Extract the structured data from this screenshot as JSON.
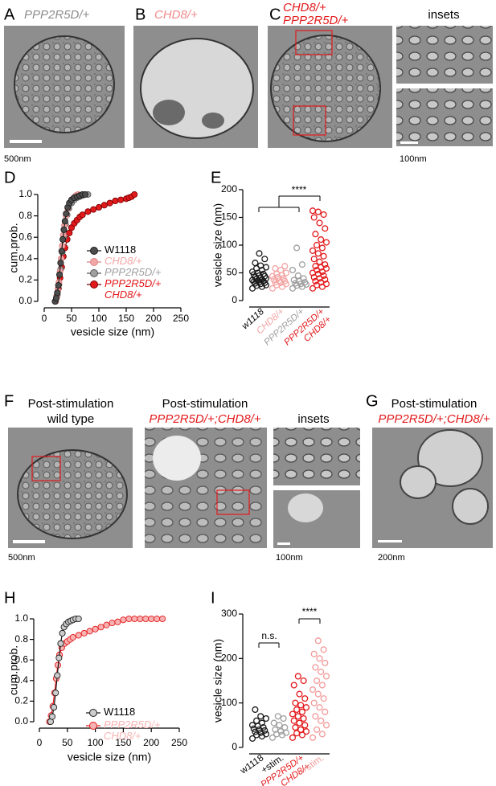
{
  "panels": {
    "A": {
      "label": "A",
      "title": "PPP2R5D/+",
      "scale": "500nm"
    },
    "B": {
      "label": "B",
      "title": "CHD8/+"
    },
    "C": {
      "label": "C",
      "title": [
        "CHD8/+",
        "PPP2R5D/+"
      ],
      "insets_title": "insets",
      "insets_scale": "100nm"
    },
    "F": {
      "label": "F",
      "wt_title": [
        "Post-stimulation",
        "wild type"
      ],
      "wt_scale": "500nm",
      "mut_title": [
        "Post-stimulation",
        "PPP2R5D/+;CHD8/+"
      ],
      "insets_title": "insets",
      "insets_scale": "100nm"
    },
    "G": {
      "label": "G",
      "title": [
        "Post-stimulation",
        "PPP2R5D/+;CHD8/+"
      ],
      "scale": "200nm"
    }
  },
  "chart_data": [
    {
      "label": "D",
      "type": "line",
      "ylabel": "cum.prob.",
      "xlabel": "vesicle size (nm)",
      "xlim": [
        0,
        250
      ],
      "xticks": [
        0,
        50,
        100,
        150,
        200,
        250
      ],
      "ylim": [
        0,
        1
      ],
      "yticks": [
        {
          "value": 0,
          "label": "0.0"
        },
        0.2,
        0.4,
        0.6,
        0.8,
        {
          "value": 1,
          "label": "1.0"
        }
      ],
      "series": [
        {
          "name": "W1118",
          "color": "#4d4d4d",
          "edgecolor": "#1a1a1a",
          "x": [
            20,
            22,
            24,
            26,
            28,
            30,
            32,
            34,
            36,
            38,
            40,
            43,
            46,
            50,
            55,
            60,
            65,
            70,
            75
          ],
          "values": [
            0,
            0.03,
            0.08,
            0.15,
            0.25,
            0.36,
            0.47,
            0.58,
            0.67,
            0.75,
            0.82,
            0.88,
            0.92,
            0.95,
            0.97,
            0.98,
            0.99,
            1,
            1
          ]
        },
        {
          "name": "CHD8/+",
          "color": "#f4a6a6",
          "edgecolor": "#d98080",
          "x": [
            21,
            23,
            25,
            27,
            29,
            31,
            33,
            35,
            37,
            40,
            43,
            46,
            50,
            54,
            58,
            62
          ],
          "values": [
            0,
            0.04,
            0.1,
            0.18,
            0.28,
            0.4,
            0.52,
            0.62,
            0.71,
            0.8,
            0.87,
            0.92,
            0.95,
            0.97,
            0.99,
            1
          ]
        },
        {
          "name": "PPP2R5D/+",
          "color": "#a0a0a0",
          "edgecolor": "#555555",
          "x": [
            21,
            24,
            27,
            30,
            33,
            36,
            39,
            42,
            45,
            50,
            55,
            60,
            65,
            70,
            80
          ],
          "values": [
            0,
            0.06,
            0.16,
            0.3,
            0.46,
            0.6,
            0.72,
            0.81,
            0.87,
            0.92,
            0.95,
            0.97,
            0.98,
            0.99,
            1
          ]
        },
        {
          "name": "PPP2R5D/+ CHD8/+",
          "color": "#e31a1c",
          "edgecolor": "#7a0000",
          "x": [
            20,
            23,
            26,
            29,
            32,
            35,
            38,
            42,
            46,
            50,
            55,
            60,
            65,
            70,
            80,
            90,
            100,
            110,
            120,
            130,
            140,
            150,
            155,
            160,
            165
          ],
          "values": [
            0,
            0.05,
            0.12,
            0.22,
            0.32,
            0.42,
            0.5,
            0.58,
            0.64,
            0.69,
            0.73,
            0.76,
            0.79,
            0.81,
            0.84,
            0.86,
            0.88,
            0.9,
            0.92,
            0.94,
            0.95,
            0.96,
            0.97,
            0.98,
            1
          ]
        }
      ]
    },
    {
      "label": "E",
      "type": "strip",
      "ylabel": "vesicle size (nm)",
      "ylim": [
        0,
        200
      ],
      "yticks": [
        0,
        50,
        100,
        150,
        200
      ],
      "categories": [
        "w1118",
        "CHD8/+",
        "PPP2R5D/+",
        "PPP2R5D/+ CHD8/+"
      ],
      "category_colors": [
        "#000000",
        "#f4a4a4",
        "#9e9e9e",
        "#e31a1c"
      ],
      "annotations": [
        "****"
      ],
      "series": [
        {
          "color": "#1a1a1a",
          "values": [
            22,
            25,
            27,
            28,
            30,
            31,
            32,
            33,
            34,
            35,
            36,
            37,
            38,
            39,
            40,
            41,
            42,
            44,
            45,
            47,
            48,
            50,
            52,
            55,
            58,
            60,
            63,
            68,
            75,
            85
          ]
        },
        {
          "color": "#f4a4a4",
          "values": [
            22,
            25,
            28,
            30,
            32,
            33,
            35,
            36,
            38,
            40,
            42,
            44,
            46,
            48,
            50,
            55,
            58,
            62
          ]
        },
        {
          "color": "#9e9e9e",
          "values": [
            22,
            25,
            27,
            29,
            30,
            31,
            33,
            35,
            37,
            40,
            45,
            55,
            65,
            95
          ]
        },
        {
          "color": "#e31a1c",
          "values": [
            22,
            25,
            28,
            30,
            33,
            35,
            38,
            40,
            42,
            45,
            48,
            50,
            52,
            55,
            58,
            60,
            62,
            65,
            70,
            75,
            80,
            85,
            90,
            95,
            100,
            105,
            110,
            120,
            130,
            140,
            150,
            155,
            160,
            162
          ]
        }
      ]
    },
    {
      "label": "H",
      "type": "line",
      "ylabel": "cum.prob.",
      "xlabel": "vesicle size (nm)",
      "xlim": [
        0,
        250
      ],
      "xticks": [
        0,
        50,
        100,
        150,
        200,
        250
      ],
      "ylim": [
        0,
        1
      ],
      "yticks": [
        {
          "value": 0,
          "label": "0.0"
        },
        0.2,
        0.4,
        0.6,
        0.8,
        {
          "value": 1,
          "label": "1.0"
        }
      ],
      "series": [
        {
          "name": "W1118",
          "color": "#cccccc",
          "edgecolor": "#1a1a1a",
          "x": [
            20,
            23,
            26,
            29,
            32,
            35,
            38,
            41,
            44,
            48,
            52,
            56,
            60,
            65,
            70
          ],
          "values": [
            0,
            0.05,
            0.14,
            0.28,
            0.45,
            0.62,
            0.76,
            0.86,
            0.92,
            0.95,
            0.97,
            0.98,
            0.99,
            1,
            1
          ]
        },
        {
          "name": "PPP2R5D/+ CHD8/+",
          "color": "#f7b3b3",
          "edgecolor": "#e31a1c",
          "x": [
            18,
            21,
            24,
            27,
            30,
            33,
            36,
            40,
            45,
            50,
            55,
            60,
            70,
            80,
            90,
            100,
            110,
            120,
            130,
            140,
            150,
            160,
            170,
            180,
            190,
            200,
            210,
            220
          ],
          "values": [
            0,
            0.06,
            0.15,
            0.28,
            0.42,
            0.55,
            0.65,
            0.72,
            0.76,
            0.78,
            0.8,
            0.82,
            0.84,
            0.86,
            0.88,
            0.9,
            0.92,
            0.94,
            0.96,
            0.97,
            0.99,
            1,
            1,
            1,
            1,
            1,
            1,
            1
          ]
        }
      ]
    },
    {
      "label": "I",
      "type": "strip",
      "ylabel": "vesicle size (nm)",
      "ylim": [
        0,
        300
      ],
      "yticks": [
        0,
        100,
        200,
        300
      ],
      "categories": [
        "w1118",
        "+stim.",
        "PPP2R5D/+ CHD8/+",
        "+stim."
      ],
      "category_colors": [
        "#000000",
        "#000000",
        "#e31a1c",
        "#f29a9a"
      ],
      "annotations": [
        "n.s.",
        "****"
      ],
      "series": [
        {
          "color": "#1a1a1a",
          "values": [
            20,
            25,
            28,
            30,
            33,
            35,
            38,
            40,
            42,
            45,
            48,
            50,
            55,
            60,
            65,
            70,
            85
          ]
        },
        {
          "color": "#9e9e9e",
          "values": [
            22,
            28,
            30,
            33,
            36,
            40,
            45,
            50,
            55,
            65,
            70
          ]
        },
        {
          "color": "#e31a1c",
          "values": [
            22,
            28,
            32,
            36,
            40,
            45,
            50,
            55,
            60,
            65,
            70,
            75,
            80,
            85,
            90,
            95,
            100,
            110,
            120,
            140,
            150,
            160
          ]
        },
        {
          "color": "#f29a9a",
          "values": [
            22,
            30,
            40,
            50,
            60,
            70,
            80,
            90,
            100,
            110,
            120,
            130,
            140,
            150,
            160,
            170,
            180,
            190,
            200,
            210,
            220,
            240
          ]
        }
      ]
    }
  ]
}
